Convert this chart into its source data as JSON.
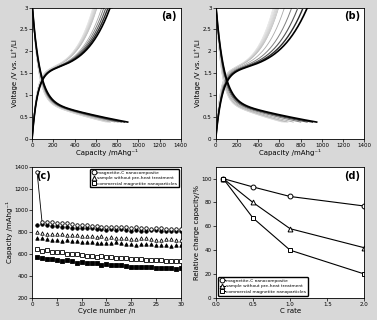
{
  "fig_width": 3.77,
  "fig_height": 3.2,
  "dpi": 100,
  "background": "#d8d8d8",
  "panel_a": {
    "label": "(a)",
    "xlabel": "Capacity /mAhg⁻¹",
    "ylabel": "Voltage /V vs. Li⁺/Li",
    "xlim": [
      0,
      1400
    ],
    "ylim": [
      0.0,
      3.0
    ],
    "xticks": [
      0,
      200,
      400,
      600,
      800,
      1000,
      1200,
      1400
    ],
    "yticks": [
      0.0,
      0.5,
      1.0,
      1.5,
      2.0,
      2.5,
      3.0
    ]
  },
  "panel_b": {
    "label": "(b)",
    "xlabel": "Capacity /mAhg⁻¹",
    "ylabel": "Voltage /V vs. Li⁺/Li",
    "xlim": [
      0,
      1400
    ],
    "ylim": [
      0.0,
      3.0
    ],
    "xticks": [
      0,
      200,
      400,
      600,
      800,
      1000,
      1200,
      1400
    ],
    "yticks": [
      0.0,
      0.5,
      1.0,
      1.5,
      2.0,
      2.5,
      3.0
    ]
  },
  "panel_c": {
    "label": "(c)",
    "xlabel": "Cycle number /n",
    "ylabel": "Capacity /mAhg⁻¹",
    "xlim": [
      0,
      30
    ],
    "ylim": [
      200,
      1400
    ],
    "xticks": [
      0,
      5,
      10,
      15,
      20,
      25,
      30
    ],
    "yticks": [
      200,
      400,
      600,
      800,
      1000,
      1200,
      1400
    ],
    "legend_labels": [
      "magnetite-C nanocomposite",
      "sample without pre-heat treatment",
      "commercial magnetite nanoparticles"
    ]
  },
  "panel_d": {
    "label": "(d)",
    "xlabel": "C rate",
    "ylabel": "Relative charge capacity/%",
    "xlim": [
      0.0,
      2.0
    ],
    "ylim": [
      0,
      110
    ],
    "xticks": [
      0.0,
      0.5,
      1.0,
      1.5,
      2.0
    ],
    "yticks": [
      0,
      20,
      40,
      60,
      80,
      100
    ],
    "c_rates": [
      0.1,
      0.5,
      1.0,
      2.0
    ],
    "mag_c_rel": [
      100,
      93,
      85,
      77
    ],
    "nopre_rel": [
      100,
      80,
      58,
      42
    ],
    "comm_rel": [
      100,
      67,
      40,
      20
    ],
    "legend_labels": [
      "magnetite-C nanocomposite",
      "sample without pre-heat treatment",
      "commercial magnetite nanoparticles"
    ]
  }
}
